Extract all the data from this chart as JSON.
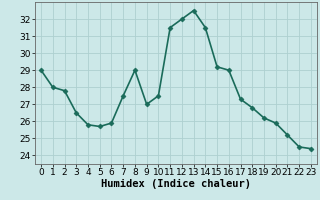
{
  "x": [
    0,
    1,
    2,
    3,
    4,
    5,
    6,
    7,
    8,
    9,
    10,
    11,
    12,
    13,
    14,
    15,
    16,
    17,
    18,
    19,
    20,
    21,
    22,
    23
  ],
  "y": [
    29,
    28,
    27.8,
    26.5,
    25.8,
    25.7,
    25.9,
    27.5,
    29,
    27,
    27.5,
    31.5,
    32,
    32.5,
    31.5,
    29.2,
    29,
    27.3,
    26.8,
    26.2,
    25.9,
    25.2,
    24.5,
    24.4
  ],
  "line_color": "#1a6b5a",
  "marker": "D",
  "marker_size": 2.5,
  "bg_color": "#cce8e8",
  "grid_color": "#aed0d0",
  "xlabel": "Humidex (Indice chaleur)",
  "xlim": [
    -0.5,
    23.5
  ],
  "ylim": [
    23.5,
    33.0
  ],
  "yticks": [
    24,
    25,
    26,
    27,
    28,
    29,
    30,
    31,
    32
  ],
  "xticks": [
    0,
    1,
    2,
    3,
    4,
    5,
    6,
    7,
    8,
    9,
    10,
    11,
    12,
    13,
    14,
    15,
    16,
    17,
    18,
    19,
    20,
    21,
    22,
    23
  ],
  "xlabel_fontsize": 7.5,
  "tick_fontsize": 6.5,
  "linewidth": 1.2
}
